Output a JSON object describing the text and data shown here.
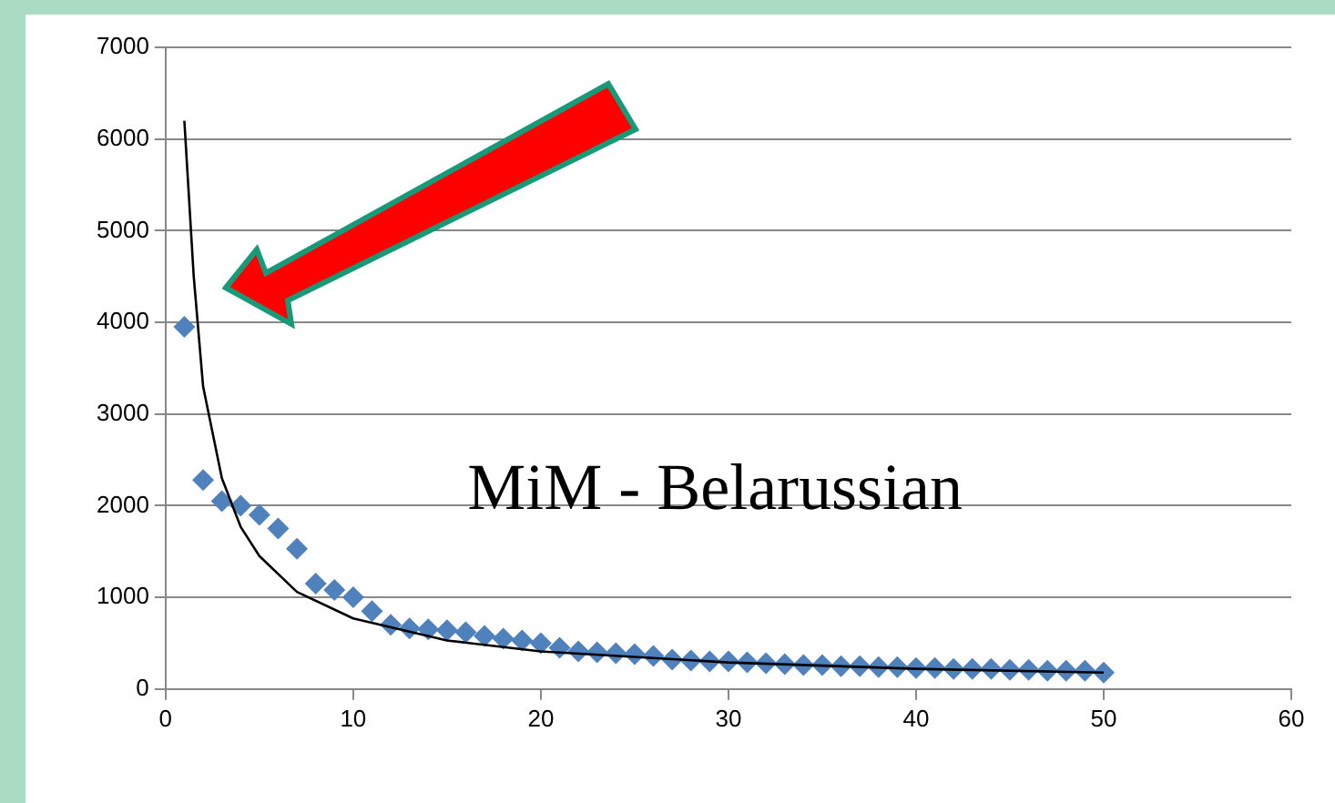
{
  "chart_data": {
    "type": "scatter",
    "annotations": [
      "MiM - Belarussian"
    ],
    "x": [
      1,
      2,
      3,
      4,
      5,
      6,
      7,
      8,
      9,
      10,
      11,
      12,
      13,
      14,
      15,
      16,
      17,
      18,
      19,
      20,
      21,
      22,
      23,
      24,
      25,
      26,
      27,
      28,
      29,
      30,
      31,
      32,
      33,
      34,
      35,
      36,
      37,
      38,
      39,
      40,
      41,
      42,
      43,
      44,
      45,
      46,
      47,
      48,
      49,
      50
    ],
    "series": [
      {
        "type": "scatter",
        "color": "#4f81bd",
        "marker": "diamond",
        "values": [
          3950,
          2280,
          2050,
          2000,
          1900,
          1750,
          1530,
          1150,
          1080,
          1000,
          850,
          700,
          660,
          650,
          640,
          620,
          580,
          550,
          530,
          500,
          450,
          410,
          400,
          390,
          380,
          360,
          320,
          310,
          300,
          300,
          290,
          280,
          270,
          260,
          260,
          250,
          250,
          240,
          240,
          230,
          230,
          220,
          220,
          220,
          210,
          210,
          200,
          200,
          200,
          180
        ]
      },
      {
        "type": "line",
        "color": "#000000",
        "marker": "none",
        "x": [
          1,
          1.5,
          2,
          3,
          4,
          5,
          7,
          10,
          15,
          20,
          30,
          40,
          50
        ],
        "values": [
          6200,
          4500,
          3300,
          2300,
          1770,
          1450,
          1060,
          770,
          530,
          410,
          290,
          220,
          180
        ]
      }
    ],
    "xlim": [
      0,
      60
    ],
    "xticks": [
      0,
      10,
      20,
      30,
      40,
      50,
      60
    ],
    "ylim": [
      0,
      7000
    ],
    "yticks": [
      0,
      1000,
      2000,
      3000,
      4000,
      5000,
      6000,
      7000
    ],
    "grid": "y",
    "legend": false
  }
}
